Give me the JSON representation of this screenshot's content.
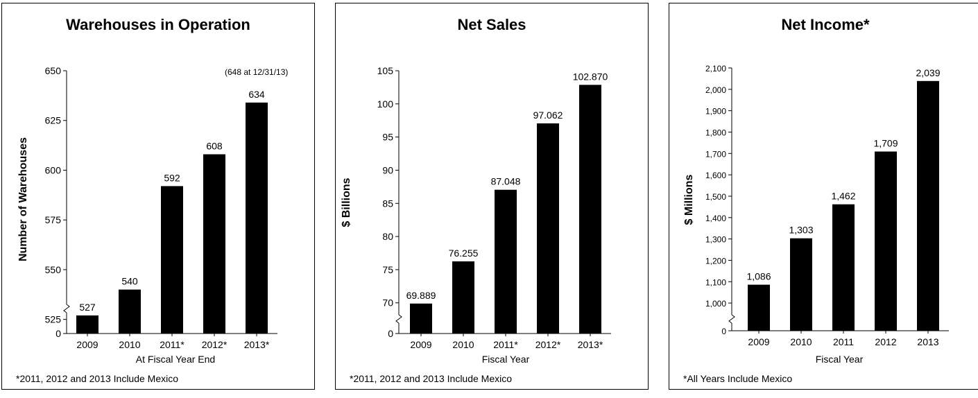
{
  "chart_data": [
    {
      "type": "bar",
      "title": "Warehouses in Operation",
      "xlabel": "At Fiscal Year End",
      "ylabel": "Number of Warehouses",
      "categories": [
        "2009",
        "2010",
        "2011*",
        "2012*",
        "2013*"
      ],
      "values": [
        527,
        540,
        592,
        608,
        634
      ],
      "value_labels": [
        "527",
        "540",
        "592",
        "608",
        "634"
      ],
      "yticks": [
        "0",
        "525",
        "550",
        "575",
        "600",
        "625",
        "650"
      ],
      "ylim": [
        520,
        650
      ],
      "axis_break": true,
      "annotation": "(648 at 12/31/13)",
      "footnote": "*2011, 2012 and 2013 Include Mexico",
      "grid": false,
      "bar_color": "#000000"
    },
    {
      "type": "bar",
      "title": "Net Sales",
      "xlabel": "Fiscal Year",
      "ylabel": "$ Billions",
      "categories": [
        "2009",
        "2010",
        "2011*",
        "2012*",
        "2013*"
      ],
      "values": [
        69.889,
        76.255,
        87.048,
        97.062,
        102.87
      ],
      "value_labels": [
        "69.889",
        "76.255",
        "87.048",
        "97.062",
        "102.870"
      ],
      "yticks": [
        "0",
        "70",
        "75",
        "80",
        "85",
        "90",
        "95",
        "100",
        "105"
      ],
      "ylim": [
        66,
        105
      ],
      "axis_break": true,
      "footnote": "*2011, 2012 and 2013 Include Mexico",
      "grid": false,
      "bar_color": "#000000"
    },
    {
      "type": "bar",
      "title": "Net Income*",
      "xlabel": "Fiscal Year",
      "ylabel": "$ Millions",
      "categories": [
        "2009",
        "2010",
        "2011",
        "2012",
        "2013"
      ],
      "values": [
        1086,
        1303,
        1462,
        1709,
        2039
      ],
      "value_labels": [
        "1,086",
        "1,303",
        "1,462",
        "1,709",
        "2,039"
      ],
      "yticks": [
        "0",
        "1,000",
        "1,100",
        "1,200",
        "1,300",
        "1,400",
        "1,500",
        "1,600",
        "1,700",
        "1,800",
        "1,900",
        "2,000",
        "2,100"
      ],
      "ylim": [
        890,
        2100
      ],
      "axis_break": true,
      "footnote": "*All Years Include Mexico",
      "grid": false,
      "bar_color": "#000000"
    }
  ]
}
